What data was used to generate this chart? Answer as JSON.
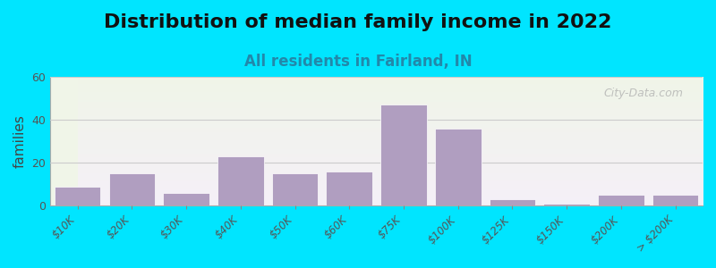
{
  "title": "Distribution of median family income in 2022",
  "subtitle": "All residents in Fairland, IN",
  "xlabel": "",
  "ylabel": "families",
  "categories": [
    "$10K",
    "$20K",
    "$30K",
    "$40K",
    "$50K",
    "$60K",
    "$75K",
    "$100K",
    "$125K",
    "$150K",
    "$200K",
    "> $200K"
  ],
  "values": [
    9,
    15,
    6,
    23,
    15,
    16,
    47,
    36,
    3,
    1,
    5,
    5
  ],
  "bar_color": "#b09ec0",
  "bar_edge_color": "#b09ec0",
  "background_outer": "#00e5ff",
  "background_inner_top": "#f0f5e8",
  "background_inner_bottom": "#f5f0f8",
  "ylim": [
    0,
    60
  ],
  "yticks": [
    0,
    20,
    40,
    60
  ],
  "title_fontsize": 16,
  "subtitle_fontsize": 12,
  "ylabel_fontsize": 11,
  "watermark": "City-Data.com"
}
